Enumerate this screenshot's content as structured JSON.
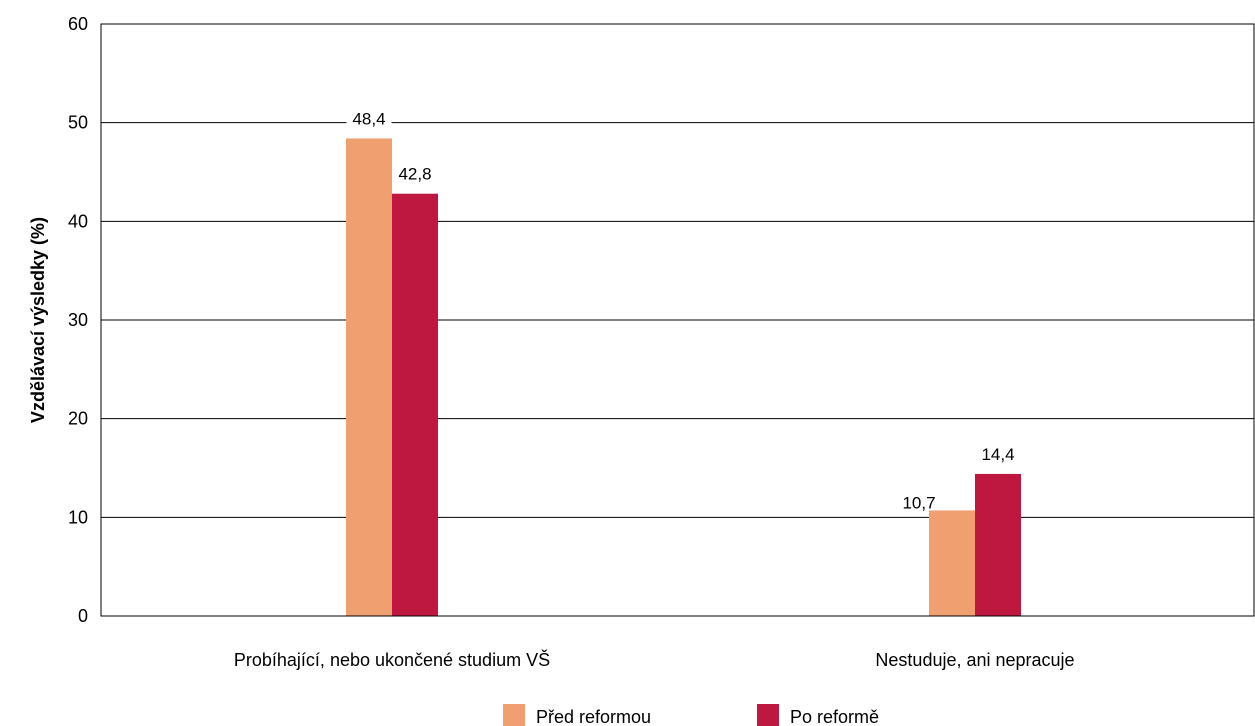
{
  "chart_data": {
    "type": "bar",
    "categories": [
      "Probíhající, nebo ukončené studium VŠ",
      "Nestuduje, ani nepracuje"
    ],
    "series": [
      {
        "name": "Před reformou",
        "values": [
          48.4,
          10.7
        ],
        "labels": [
          "48,4",
          "10,7"
        ],
        "color": "#f0a070"
      },
      {
        "name": "Po reformě",
        "values": [
          42.8,
          14.4
        ],
        "labels": [
          "42,8",
          "14,4"
        ],
        "color": "#be1740"
      }
    ],
    "ylabel": "Vzdělávací výsledky (%)",
    "xlabel": "",
    "ylim": [
      0,
      60
    ],
    "yticks": [
      "0",
      "10",
      "20",
      "30",
      "40",
      "50",
      "60"
    ],
    "grid": true,
    "legend_position": "bottom"
  }
}
